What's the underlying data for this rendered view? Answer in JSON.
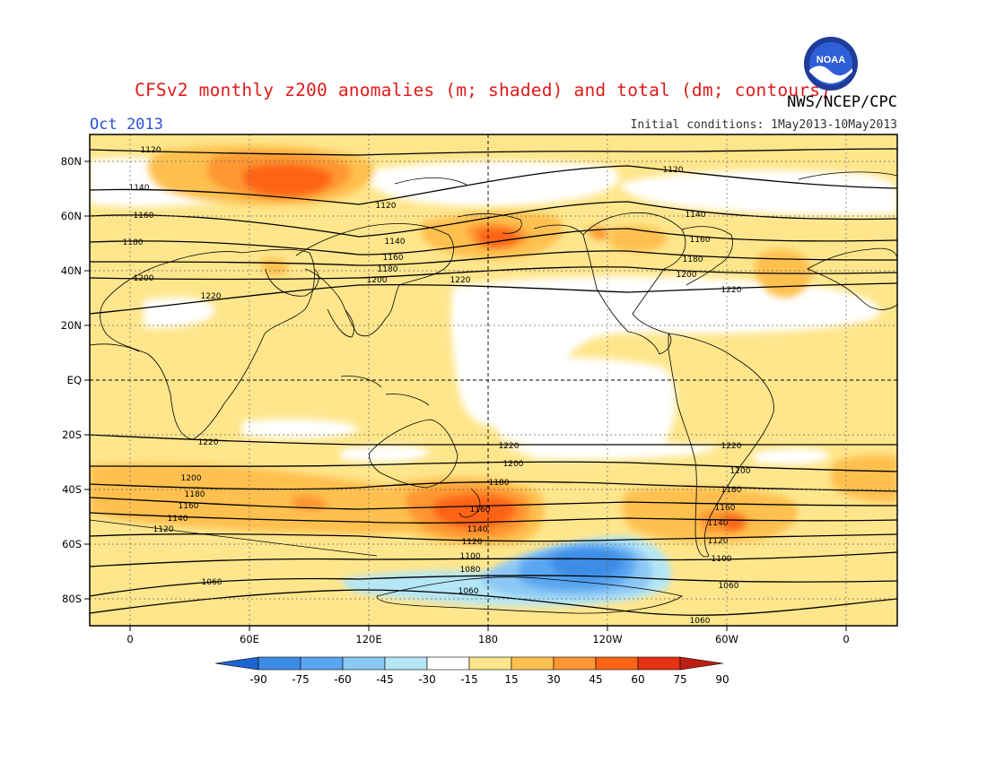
{
  "title": "CFSv2 monthly z200 anomalies (m; shaded) and total (dm; contours)",
  "agency": "NWS/NCEP/CPC",
  "logo_text": "NOAA",
  "month_label": "Oct 2013",
  "initial_conditions": "Initial conditions: 1May2013-10May2013",
  "lat_ticks": [
    "80N",
    "60N",
    "40N",
    "20N",
    "EQ",
    "20S",
    "40S",
    "60S",
    "80S"
  ],
  "lon_ticks": [
    "0",
    "60E",
    "120E",
    "180",
    "120W",
    "60W",
    "0"
  ],
  "colorbar": {
    "ticks": [
      "-90",
      "-75",
      "-60",
      "-45",
      "-30",
      "-15",
      "15",
      "30",
      "45",
      "60",
      "75",
      "90"
    ],
    "colors": [
      "#1e64d2",
      "#3c8ce6",
      "#5aa5f0",
      "#8cc8f5",
      "#b4e6f5",
      "#ffffff",
      "#ffe68c",
      "#ffc050",
      "#ff9632",
      "#ff6414",
      "#e63214",
      "#be1e14"
    ]
  },
  "contour_labels": [
    "1060",
    "1080",
    "1100",
    "1120",
    "1140",
    "1160",
    "1180",
    "1200",
    "1220"
  ]
}
